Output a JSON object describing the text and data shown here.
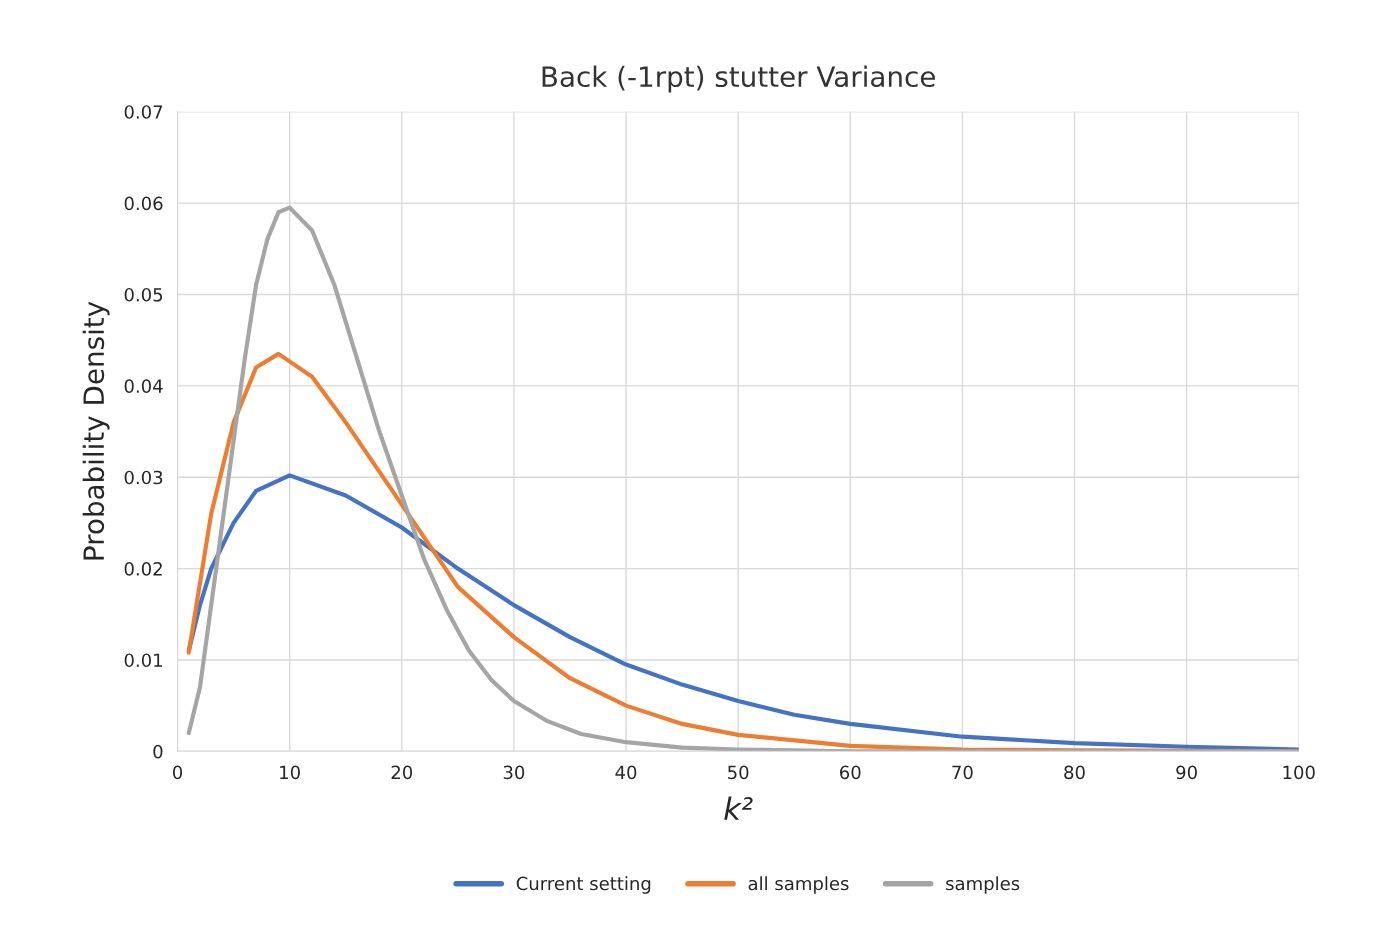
{
  "chart_data": {
    "type": "line",
    "title": "Back (-1rpt) stutter Variance",
    "xlabel": "k²",
    "ylabel": "Probability Density",
    "xlim": [
      0,
      100
    ],
    "xticks": [
      0,
      10,
      20,
      30,
      40,
      50,
      60,
      70,
      80,
      90,
      100
    ],
    "ylim": [
      0,
      0.07
    ],
    "yticks": [
      {
        "value": 0,
        "label": "0"
      },
      {
        "value": 0.01,
        "label": "0.01"
      },
      {
        "value": 0.02,
        "label": "0.02"
      },
      {
        "value": 0.03,
        "label": "0.03"
      },
      {
        "value": 0.04,
        "label": "0.04"
      },
      {
        "value": 0.05,
        "label": "0.05"
      },
      {
        "value": 0.06,
        "label": "0.06"
      },
      {
        "value": 0.07,
        "label": "0.07"
      }
    ],
    "grid": true,
    "legend": "bottom",
    "marker": "none",
    "line_style": "solid",
    "series": [
      {
        "name": "Current setting",
        "color": "#4472c4",
        "x": [
          1,
          2,
          3,
          5,
          7,
          10,
          15,
          20,
          25,
          30,
          35,
          40,
          45,
          50,
          55,
          60,
          70,
          80,
          90,
          100
        ],
        "values": [
          0.011,
          0.016,
          0.02,
          0.025,
          0.0285,
          0.0302,
          0.028,
          0.0245,
          0.02,
          0.016,
          0.0125,
          0.0095,
          0.0073,
          0.0055,
          0.004,
          0.003,
          0.0016,
          0.0009,
          0.0005,
          0.0002
        ]
      },
      {
        "name": "all samples",
        "color": "#ed7d31",
        "x": [
          1,
          3,
          5,
          7,
          9,
          12,
          15,
          20,
          25,
          30,
          35,
          40,
          45,
          50,
          60,
          70,
          80,
          100
        ],
        "values": [
          0.0108,
          0.026,
          0.036,
          0.042,
          0.0435,
          0.041,
          0.036,
          0.027,
          0.018,
          0.0125,
          0.008,
          0.005,
          0.003,
          0.0018,
          0.0006,
          0.0002,
          0.0001,
          0
        ]
      },
      {
        "name": "samples",
        "color": "#a5a5a5",
        "x": [
          1,
          2,
          3,
          4,
          5,
          6,
          7,
          8,
          9,
          10,
          12,
          14,
          16,
          18,
          20,
          22,
          24,
          26,
          28,
          30,
          33,
          36,
          40,
          45,
          50,
          60,
          100
        ],
        "values": [
          0.002,
          0.007,
          0.016,
          0.025,
          0.034,
          0.043,
          0.051,
          0.056,
          0.059,
          0.0595,
          0.057,
          0.051,
          0.043,
          0.035,
          0.028,
          0.021,
          0.0155,
          0.011,
          0.0078,
          0.0055,
          0.0033,
          0.0019,
          0.001,
          0.0004,
          0.0002,
          0,
          0
        ]
      }
    ]
  }
}
